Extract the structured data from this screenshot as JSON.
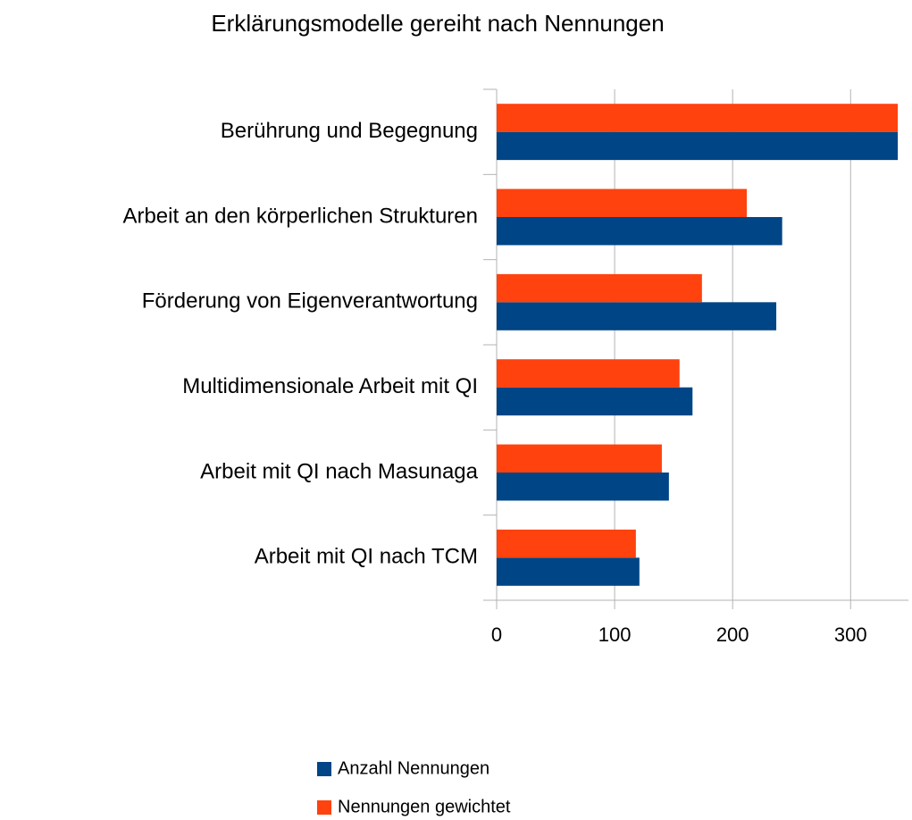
{
  "chart_data": {
    "type": "hbar",
    "title": "Erklärungsmodelle gereiht nach Nennungen",
    "categories": [
      "Berührung und Begegnung",
      "Arbeit an den körperlichen Strukturen",
      "Förderung von Eigenverantwortung",
      "Multidimensionale Arbeit mit QI",
      "Arbeit mit QI nach Masunaga",
      "Arbeit mit QI nach TCM"
    ],
    "series": [
      {
        "name": "Anzahl Nennungen",
        "color": "#004586",
        "values": [
          340,
          242,
          237,
          166,
          146,
          121
        ]
      },
      {
        "name": "Nennungen gewichtet",
        "color": "#ff420e",
        "values": [
          340,
          212,
          174,
          155,
          140,
          118
        ]
      }
    ],
    "xlim": [
      0,
      349
    ],
    "xticks": [
      0,
      100,
      200,
      300
    ],
    "grid": true,
    "legend": "bottom"
  }
}
